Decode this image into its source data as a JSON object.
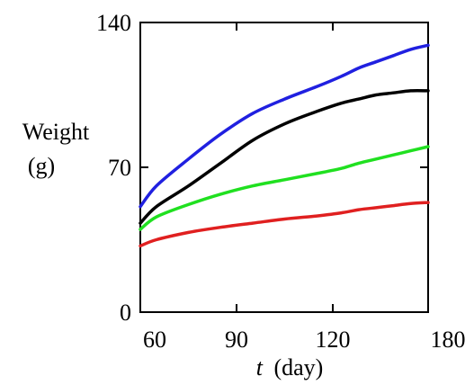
{
  "chart_data": {
    "type": "line",
    "xlabel_var": "t",
    "xlabel_unit": "(day)",
    "ylabel_line1": "Weight",
    "ylabel_line2": "(g)",
    "xlim": [
      58,
      175
    ],
    "ylim": [
      0,
      140
    ],
    "xticks": [
      60,
      90,
      120,
      180
    ],
    "yticks": [
      0,
      70,
      140
    ],
    "grid": false,
    "series": [
      {
        "color": "#2020e0",
        "x": [
          58,
          65,
          75,
          85,
          95,
          105,
          115,
          125,
          135,
          145,
          155,
          165,
          175
        ],
        "y": [
          51,
          61,
          74,
          86,
          96,
          103,
          109,
          114,
          118,
          121,
          124,
          127,
          129
        ]
      },
      {
        "color": "#000000",
        "x": [
          58,
          65,
          75,
          85,
          95,
          105,
          115,
          125,
          135,
          145,
          155,
          165,
          175
        ],
        "y": [
          43,
          51,
          61,
          72,
          83,
          91,
          97,
          101,
          103,
          105,
          106,
          107,
          107
        ]
      },
      {
        "color": "#20e020",
        "x": [
          58,
          65,
          75,
          85,
          95,
          105,
          115,
          125,
          135,
          145,
          155,
          165,
          175
        ],
        "y": [
          40,
          46,
          52,
          57,
          61,
          64,
          67,
          69.5,
          72,
          74,
          76,
          78,
          80
        ]
      },
      {
        "color": "#e02020",
        "x": [
          58,
          65,
          75,
          85,
          95,
          105,
          115,
          125,
          135,
          145,
          155,
          165,
          175
        ],
        "y": [
          32,
          35,
          38.5,
          41,
          43,
          45,
          46.5,
          48,
          49.5,
          50.5,
          51.5,
          52.5,
          53
        ]
      }
    ]
  }
}
